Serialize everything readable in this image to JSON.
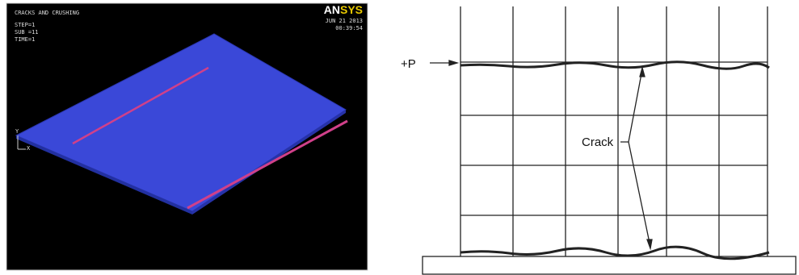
{
  "simulation": {
    "title": "CRACKS AND CRUSHING",
    "info": [
      "STEP=1",
      "SUB =11",
      "TIME=1"
    ],
    "date": "JUN 21 2013",
    "time": "00:39:54",
    "logo": [
      "AN",
      "SYS"
    ],
    "axes": [
      "Y",
      "X"
    ]
  },
  "specimen": {
    "load_label": "+P",
    "crack_label": "Crack"
  }
}
